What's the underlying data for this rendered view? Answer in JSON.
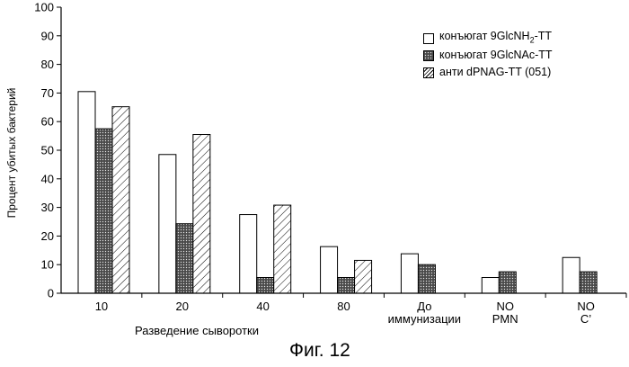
{
  "chart_data": {
    "type": "bar",
    "categories": [
      "10",
      "20",
      "40",
      "80",
      "До иммунизации",
      "NO PMN",
      "NO C’"
    ],
    "series": [
      {
        "name": "конъюгат 9GlcNH2-TT",
        "values": [
          70.5,
          48.5,
          27.5,
          16.3,
          13.8,
          5.5,
          12.5
        ]
      },
      {
        "name": "конъюгат 9GlcNAc-TT",
        "values": [
          57.5,
          24.3,
          5.5,
          5.5,
          10.0,
          7.5,
          7.5
        ]
      },
      {
        "name": "анти dPNAG-TT (051)",
        "values": [
          65.2,
          55.5,
          30.8,
          11.5,
          null,
          null,
          null
        ]
      }
    ],
    "ylabel": "Процент убитых бактерий",
    "xlabel": "Разведение сыворотки",
    "ylim": [
      0,
      100
    ],
    "yticks": [
      0,
      10,
      20,
      30,
      40,
      50,
      60,
      70,
      80,
      90,
      100
    ],
    "legend_position": "top-right",
    "grid": false
  },
  "legend": {
    "item1_prefix": "конъюгат 9GlcNH",
    "item1_sub": "2",
    "item1_suffix": "-TT",
    "item2": "конъюгат 9GlcNAc-TT",
    "item3": "анти dPNAG-TT (051)"
  },
  "caption": "Фиг. 12",
  "colors": {
    "bar_fill_1": "#ffffff",
    "bar_fill_2": "#5a5a5a",
    "axis": "#000000"
  }
}
